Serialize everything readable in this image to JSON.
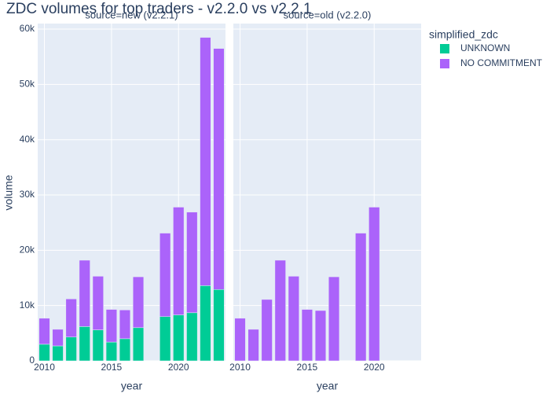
{
  "chart_data": {
    "type": "bar",
    "title": "ZDC volumes for top traders - v2.2.0 vs v2.2.1",
    "x_label": "year",
    "y_label": "volume",
    "legend_title": "simplified_zdc",
    "barmode": "stack",
    "xlim": [
      2009.5,
      2023.5
    ],
    "xticks": [
      2010,
      2015,
      2020
    ],
    "ylim": [
      0,
      61000
    ],
    "yticks": [
      0,
      {
        "value": 10000,
        "label": "10k"
      },
      {
        "value": 20000,
        "label": "20k"
      },
      {
        "value": 30000,
        "label": "30k"
      },
      {
        "value": 40000,
        "label": "40k"
      },
      {
        "value": 50000,
        "label": "50k"
      },
      {
        "value": 60000,
        "label": "60k"
      }
    ],
    "grid": true,
    "series": [
      {
        "name": "UNKNOWN",
        "color": "#00cc96"
      },
      {
        "name": "NO COMMITMENT",
        "color": "#ab63fa"
      }
    ],
    "facets": [
      {
        "title": "source=new (v2.2.1)",
        "x": [
          2010,
          2011,
          2012,
          2013,
          2014,
          2015,
          2016,
          2017,
          2019,
          2020,
          2021,
          2022,
          2023
        ],
        "values": [
          [
            3000,
            2700,
            4300,
            6200,
            5600,
            3400,
            4000,
            6000,
            8000,
            8300,
            8700,
            13600,
            12900
          ],
          [
            4700,
            3000,
            6900,
            12000,
            9700,
            5900,
            5200,
            9200,
            15100,
            19500,
            18200,
            44900,
            43600
          ]
        ]
      },
      {
        "title": "source=old (v2.2.0)",
        "x": [
          2010,
          2011,
          2012,
          2013,
          2014,
          2015,
          2016,
          2017,
          2019,
          2020
        ],
        "values": [
          [
            null,
            null,
            null,
            null,
            null,
            null,
            null,
            null,
            null,
            null
          ],
          [
            7700,
            5700,
            11100,
            18200,
            15300,
            9300,
            9100,
            15200,
            23100,
            27800
          ]
        ]
      }
    ]
  }
}
